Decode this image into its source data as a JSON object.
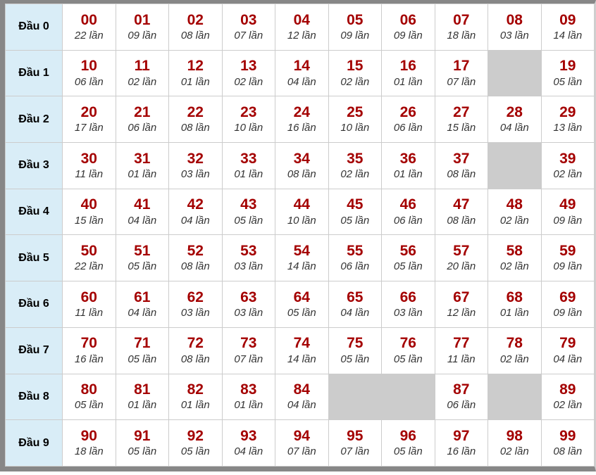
{
  "table": {
    "description": "lottery-head-digit-frequency-table",
    "unit_suffix": "lần",
    "colors": {
      "number_text": "#a40000",
      "count_text": "#333333",
      "row_header_bg": "#d9edf7",
      "empty_cell_bg": "#cccccc",
      "grid_border": "#cccccc",
      "frame_border": "#878787"
    },
    "rows": [
      {
        "label": "Đầu 0",
        "cells": [
          {
            "num": "00",
            "count": "22 lần"
          },
          {
            "num": "01",
            "count": "09 lần"
          },
          {
            "num": "02",
            "count": "08 lần"
          },
          {
            "num": "03",
            "count": "07 lần"
          },
          {
            "num": "04",
            "count": "12 lần"
          },
          {
            "num": "05",
            "count": "09 lần"
          },
          {
            "num": "06",
            "count": "09 lần"
          },
          {
            "num": "07",
            "count": "18 lần"
          },
          {
            "num": "08",
            "count": "03 lần"
          },
          {
            "num": "09",
            "count": "14 lần"
          }
        ]
      },
      {
        "label": "Đầu 1",
        "cells": [
          {
            "num": "10",
            "count": "06 lần"
          },
          {
            "num": "11",
            "count": "02 lần"
          },
          {
            "num": "12",
            "count": "01 lần"
          },
          {
            "num": "13",
            "count": "02 lần"
          },
          {
            "num": "14",
            "count": "04 lần"
          },
          {
            "num": "15",
            "count": "02 lần"
          },
          {
            "num": "16",
            "count": "01 lần"
          },
          {
            "num": "17",
            "count": "07 lần"
          },
          null,
          {
            "num": "19",
            "count": "05 lần"
          }
        ]
      },
      {
        "label": "Đầu 2",
        "cells": [
          {
            "num": "20",
            "count": "17 lần"
          },
          {
            "num": "21",
            "count": "06 lần"
          },
          {
            "num": "22",
            "count": "08 lần"
          },
          {
            "num": "23",
            "count": "10 lần"
          },
          {
            "num": "24",
            "count": "16 lần"
          },
          {
            "num": "25",
            "count": "10 lần"
          },
          {
            "num": "26",
            "count": "06 lần"
          },
          {
            "num": "27",
            "count": "15 lần"
          },
          {
            "num": "28",
            "count": "04 lần"
          },
          {
            "num": "29",
            "count": "13 lần"
          }
        ]
      },
      {
        "label": "Đầu 3",
        "cells": [
          {
            "num": "30",
            "count": "11 lần"
          },
          {
            "num": "31",
            "count": "01 lần"
          },
          {
            "num": "32",
            "count": "03 lần"
          },
          {
            "num": "33",
            "count": "01 lần"
          },
          {
            "num": "34",
            "count": "08 lần"
          },
          {
            "num": "35",
            "count": "02 lần"
          },
          {
            "num": "36",
            "count": "01 lần"
          },
          {
            "num": "37",
            "count": "08 lần"
          },
          null,
          {
            "num": "39",
            "count": "02 lần"
          }
        ]
      },
      {
        "label": "Đầu 4",
        "cells": [
          {
            "num": "40",
            "count": "15 lần"
          },
          {
            "num": "41",
            "count": "04 lần"
          },
          {
            "num": "42",
            "count": "04 lần"
          },
          {
            "num": "43",
            "count": "05 lần"
          },
          {
            "num": "44",
            "count": "10 lần"
          },
          {
            "num": "45",
            "count": "05 lần"
          },
          {
            "num": "46",
            "count": "06 lần"
          },
          {
            "num": "47",
            "count": "08 lần"
          },
          {
            "num": "48",
            "count": "02 lần"
          },
          {
            "num": "49",
            "count": "09 lần"
          }
        ]
      },
      {
        "label": "Đầu 5",
        "cells": [
          {
            "num": "50",
            "count": "22 lần"
          },
          {
            "num": "51",
            "count": "05 lần"
          },
          {
            "num": "52",
            "count": "08 lần"
          },
          {
            "num": "53",
            "count": "03 lần"
          },
          {
            "num": "54",
            "count": "14 lần"
          },
          {
            "num": "55",
            "count": "06 lần"
          },
          {
            "num": "56",
            "count": "05 lần"
          },
          {
            "num": "57",
            "count": "20 lần"
          },
          {
            "num": "58",
            "count": "02 lần"
          },
          {
            "num": "59",
            "count": "09 lần"
          }
        ]
      },
      {
        "label": "Đầu 6",
        "cells": [
          {
            "num": "60",
            "count": "11 lần"
          },
          {
            "num": "61",
            "count": "04 lần"
          },
          {
            "num": "62",
            "count": "03 lần"
          },
          {
            "num": "63",
            "count": "03 lần"
          },
          {
            "num": "64",
            "count": "05 lần"
          },
          {
            "num": "65",
            "count": "04 lần"
          },
          {
            "num": "66",
            "count": "03 lần"
          },
          {
            "num": "67",
            "count": "12 lần"
          },
          {
            "num": "68",
            "count": "01 lần"
          },
          {
            "num": "69",
            "count": "09 lần"
          }
        ]
      },
      {
        "label": "Đầu 7",
        "cells": [
          {
            "num": "70",
            "count": "16 lần"
          },
          {
            "num": "71",
            "count": "05 lần"
          },
          {
            "num": "72",
            "count": "08 lần"
          },
          {
            "num": "73",
            "count": "07 lần"
          },
          {
            "num": "74",
            "count": "14 lần"
          },
          {
            "num": "75",
            "count": "05 lần"
          },
          {
            "num": "76",
            "count": "05 lần"
          },
          {
            "num": "77",
            "count": "11 lần"
          },
          {
            "num": "78",
            "count": "02 lần"
          },
          {
            "num": "79",
            "count": "04 lần"
          }
        ]
      },
      {
        "label": "Đầu 8",
        "cells": [
          {
            "num": "80",
            "count": "05 lần"
          },
          {
            "num": "81",
            "count": "01 lần"
          },
          {
            "num": "82",
            "count": "01 lần"
          },
          {
            "num": "83",
            "count": "01 lần"
          },
          {
            "num": "84",
            "count": "04 lần"
          },
          null,
          null,
          {
            "num": "87",
            "count": "06 lần"
          },
          null,
          {
            "num": "89",
            "count": "02 lần"
          }
        ]
      },
      {
        "label": "Đầu 9",
        "cells": [
          {
            "num": "90",
            "count": "18 lần"
          },
          {
            "num": "91",
            "count": "05 lần"
          },
          {
            "num": "92",
            "count": "05 lần"
          },
          {
            "num": "93",
            "count": "04 lần"
          },
          {
            "num": "94",
            "count": "07 lần"
          },
          {
            "num": "95",
            "count": "07 lần"
          },
          {
            "num": "96",
            "count": "05 lần"
          },
          {
            "num": "97",
            "count": "16 lần"
          },
          {
            "num": "98",
            "count": "02 lần"
          },
          {
            "num": "99",
            "count": "08 lần"
          }
        ]
      }
    ]
  }
}
